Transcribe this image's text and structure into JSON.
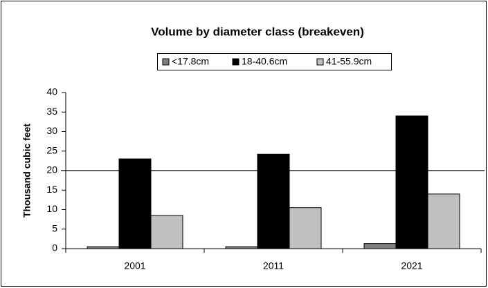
{
  "chart_data": {
    "type": "bar",
    "title": "Volume by diameter  class (breakeven)",
    "y_label": "Thousand cubic feet",
    "categories": [
      "2001",
      "2011",
      "2021"
    ],
    "series": [
      {
        "name": "<17.8cm",
        "color": "#808080",
        "values": [
          0.5,
          0.5,
          1.3
        ]
      },
      {
        "name": "18-40.6cm",
        "color": "#000000",
        "values": [
          23,
          24.2,
          34
        ]
      },
      {
        "name": "41-55.9cm",
        "color": "#c0c0c0",
        "values": [
          8.5,
          10.5,
          14
        ]
      }
    ],
    "reference_line": 20,
    "ylim": [
      0,
      40
    ],
    "yticks": [
      0,
      5,
      10,
      15,
      20,
      25,
      30,
      35,
      40
    ],
    "grid": false,
    "legend": "top"
  }
}
